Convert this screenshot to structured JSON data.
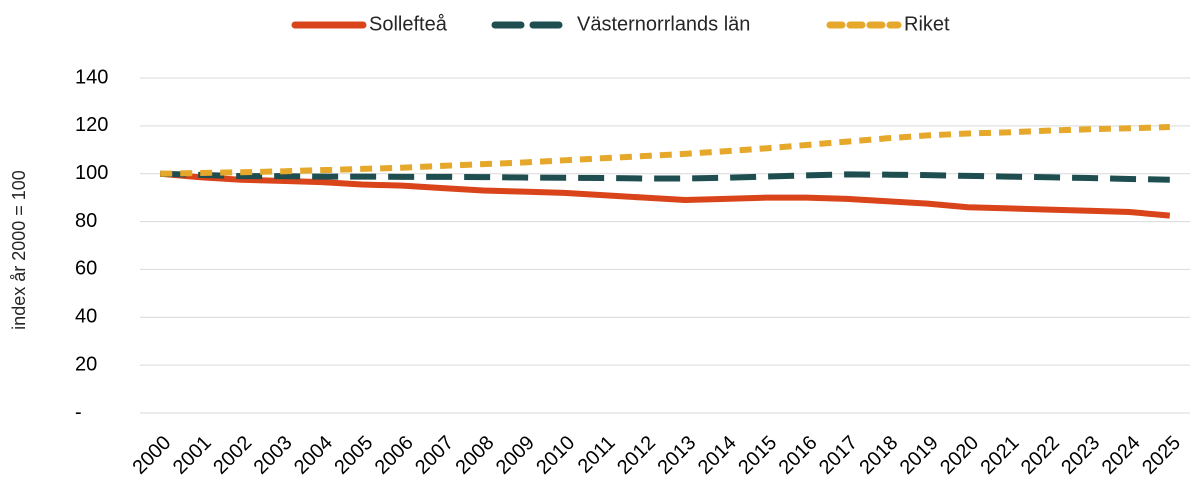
{
  "chart_data": {
    "type": "line",
    "y_axis_label": "index år 2000 = 100",
    "categories": [
      "2000",
      "2001",
      "2002",
      "2003",
      "2004",
      "2005",
      "2006",
      "2007",
      "2008",
      "2009",
      "2010",
      "2011",
      "2012",
      "2013",
      "2014",
      "2015",
      "2016",
      "2017",
      "2018",
      "2019",
      "2020",
      "2021",
      "2022",
      "2023",
      "2024",
      "2025"
    ],
    "series": [
      {
        "name": "Sollefteå",
        "color": "#d9441a",
        "line_style": "solid",
        "values": [
          100,
          98.5,
          97.5,
          97,
          96.5,
          95.5,
          95,
          94,
          93,
          92.5,
          92,
          91,
          90,
          89,
          89.5,
          90,
          90,
          89.5,
          88.5,
          87.5,
          86,
          85.5,
          85,
          84.5,
          84,
          82.5
        ]
      },
      {
        "name": "Västernorrlands län",
        "color": "#1f4e50",
        "line_style": "long-dash",
        "values": [
          100,
          99.5,
          99,
          99,
          98.8,
          98.8,
          98.7,
          98.7,
          98.6,
          98.4,
          98.3,
          98.2,
          98,
          98,
          98.3,
          98.8,
          99.3,
          99.7,
          99.6,
          99.4,
          99.1,
          98.8,
          98.5,
          98.2,
          97.8,
          97.5
        ]
      },
      {
        "name": "Riket",
        "color": "#e5a82b",
        "line_style": "short-dash",
        "values": [
          100,
          100.3,
          100.6,
          101,
          101.5,
          102,
          102.5,
          103.3,
          104,
          104.7,
          105.6,
          106.5,
          107.4,
          108.3,
          109.4,
          110.6,
          112,
          113.4,
          114.8,
          116,
          116.8,
          117.3,
          118,
          118.6,
          119,
          119.5
        ]
      }
    ],
    "ylim": [
      0,
      140
    ],
    "yticks": [
      {
        "value": 0,
        "label": "-"
      },
      20,
      40,
      60,
      80,
      100,
      120,
      140
    ],
    "grid": true,
    "legend": "top"
  }
}
